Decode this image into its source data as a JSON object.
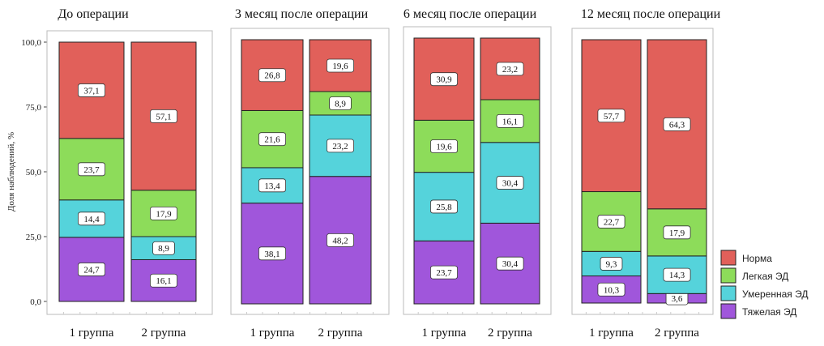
{
  "chart_data": {
    "type": "bar",
    "stacked": true,
    "ylabel": "Доля наблюдений, %",
    "ylim": [
      0,
      100
    ],
    "yticks": [
      "0,0",
      "25,0",
      "50,0",
      "75,0",
      "100,0"
    ],
    "categories": [
      "1 группа",
      "2 группа"
    ],
    "series": [
      {
        "name": "Тяжелая ЭД",
        "color": "#a056db"
      },
      {
        "name": "Умеренная ЭД",
        "color": "#55d3db"
      },
      {
        "name": "Легкая ЭД",
        "color": "#8ddc5a"
      },
      {
        "name": "Норма",
        "color": "#e1605a"
      }
    ],
    "legend": [
      "Норма",
      "Легкая ЭД",
      "Умеренная ЭД",
      "Тяжелая ЭД"
    ],
    "legend_position": "right",
    "panels": [
      {
        "title": "До операции",
        "values": [
          [
            24.7,
            14.4,
            23.7,
            37.1
          ],
          [
            16.1,
            8.9,
            17.9,
            57.1
          ]
        ],
        "labels": [
          [
            "24,7",
            "14,4",
            "23,7",
            "37,1"
          ],
          [
            "16,1",
            "8,9",
            "17,9",
            "57,1"
          ]
        ]
      },
      {
        "title": "3 месяц после операции",
        "values": [
          [
            38.1,
            13.4,
            21.6,
            26.8
          ],
          [
            48.2,
            23.2,
            8.9,
            19.6
          ]
        ],
        "labels": [
          [
            "38,1",
            "13,4",
            "21,6",
            "26,8"
          ],
          [
            "48,2",
            "23,2",
            "8,9",
            "19,6"
          ]
        ]
      },
      {
        "title": "6 месяц после операции",
        "values": [
          [
            23.7,
            25.8,
            19.6,
            30.9
          ],
          [
            30.4,
            30.4,
            16.1,
            23.2
          ]
        ],
        "labels": [
          [
            "23,7",
            "25,8",
            "19,6",
            "30,9"
          ],
          [
            "30,4",
            "30,4",
            "16,1",
            "23,2"
          ]
        ]
      },
      {
        "title": "12 месяц после операции",
        "values": [
          [
            10.3,
            9.3,
            22.7,
            57.7
          ],
          [
            3.6,
            14.3,
            17.9,
            64.3
          ]
        ],
        "labels": [
          [
            "10,3",
            "9,3",
            "22,7",
            "57,7"
          ],
          [
            "3,6",
            "14,3",
            "17,9",
            "64,3"
          ]
        ]
      }
    ]
  }
}
